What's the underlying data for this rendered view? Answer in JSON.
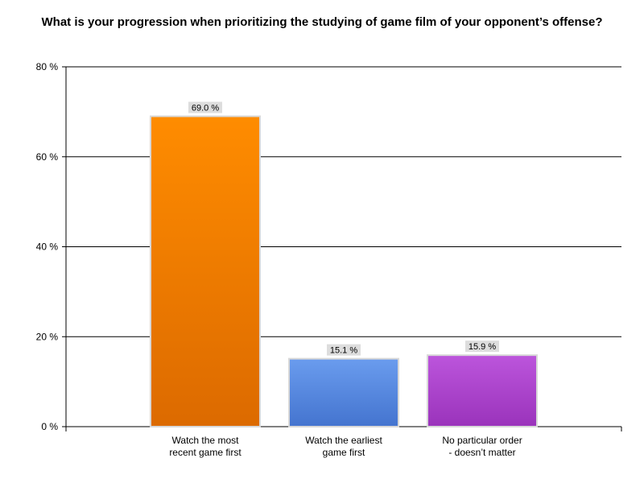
{
  "chart_data": {
    "type": "bar",
    "title": "What is your progression when prioritizing the studying of game film of your opponent’s offense?",
    "categories": [
      [
        "Watch the most",
        "recent game first"
      ],
      [
        "Watch the earliest",
        "game first"
      ],
      [
        "No particular order",
        "- doesn’t matter"
      ]
    ],
    "values": [
      69.0,
      15.1,
      15.9
    ],
    "data_labels": [
      "69.0 %",
      "15.1 %",
      "15.9 %"
    ],
    "ylim": [
      0,
      80
    ],
    "yticks": [
      0,
      20,
      40,
      60,
      80
    ],
    "ytick_labels": [
      "0 %",
      "20 %",
      "40 %",
      "60 %",
      "80 %"
    ],
    "grid": true,
    "xlabel": "",
    "ylabel": "",
    "bar_colors": [
      [
        "#ff8c00",
        "#dc6a00"
      ],
      [
        "#6a9cee",
        "#4474cf"
      ],
      [
        "#bc55dc",
        "#9a33bb"
      ]
    ],
    "bar_border_color": "#d8d8d8",
    "label_bg_color": "#dddddd"
  }
}
